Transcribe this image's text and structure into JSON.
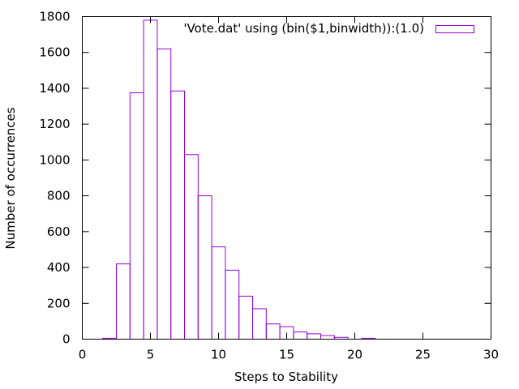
{
  "chart_data": {
    "type": "bar",
    "style": "histogram-outline",
    "xlabel": "Steps to Stability",
    "ylabel": "Number of occurrences",
    "xlim": [
      0,
      30
    ],
    "ylim": [
      0,
      1800
    ],
    "xticks": [
      0,
      5,
      10,
      15,
      20,
      25,
      30
    ],
    "yticks": [
      0,
      200,
      400,
      600,
      800,
      1000,
      1200,
      1400,
      1600,
      1800
    ],
    "bin_width": 1,
    "grid": false,
    "legend_position": "top-right",
    "series": [
      {
        "name": "'Vote.dat' using (bin($1,binwidth)):(1.0)",
        "color": "#9400d3",
        "x": [
          2,
          3,
          4,
          5,
          6,
          7,
          8,
          9,
          10,
          11,
          12,
          13,
          14,
          15,
          16,
          17,
          18,
          19,
          21
        ],
        "values": [
          5,
          420,
          1375,
          1780,
          1620,
          1385,
          1030,
          800,
          515,
          385,
          240,
          170,
          85,
          70,
          40,
          30,
          20,
          10,
          5
        ]
      }
    ]
  }
}
